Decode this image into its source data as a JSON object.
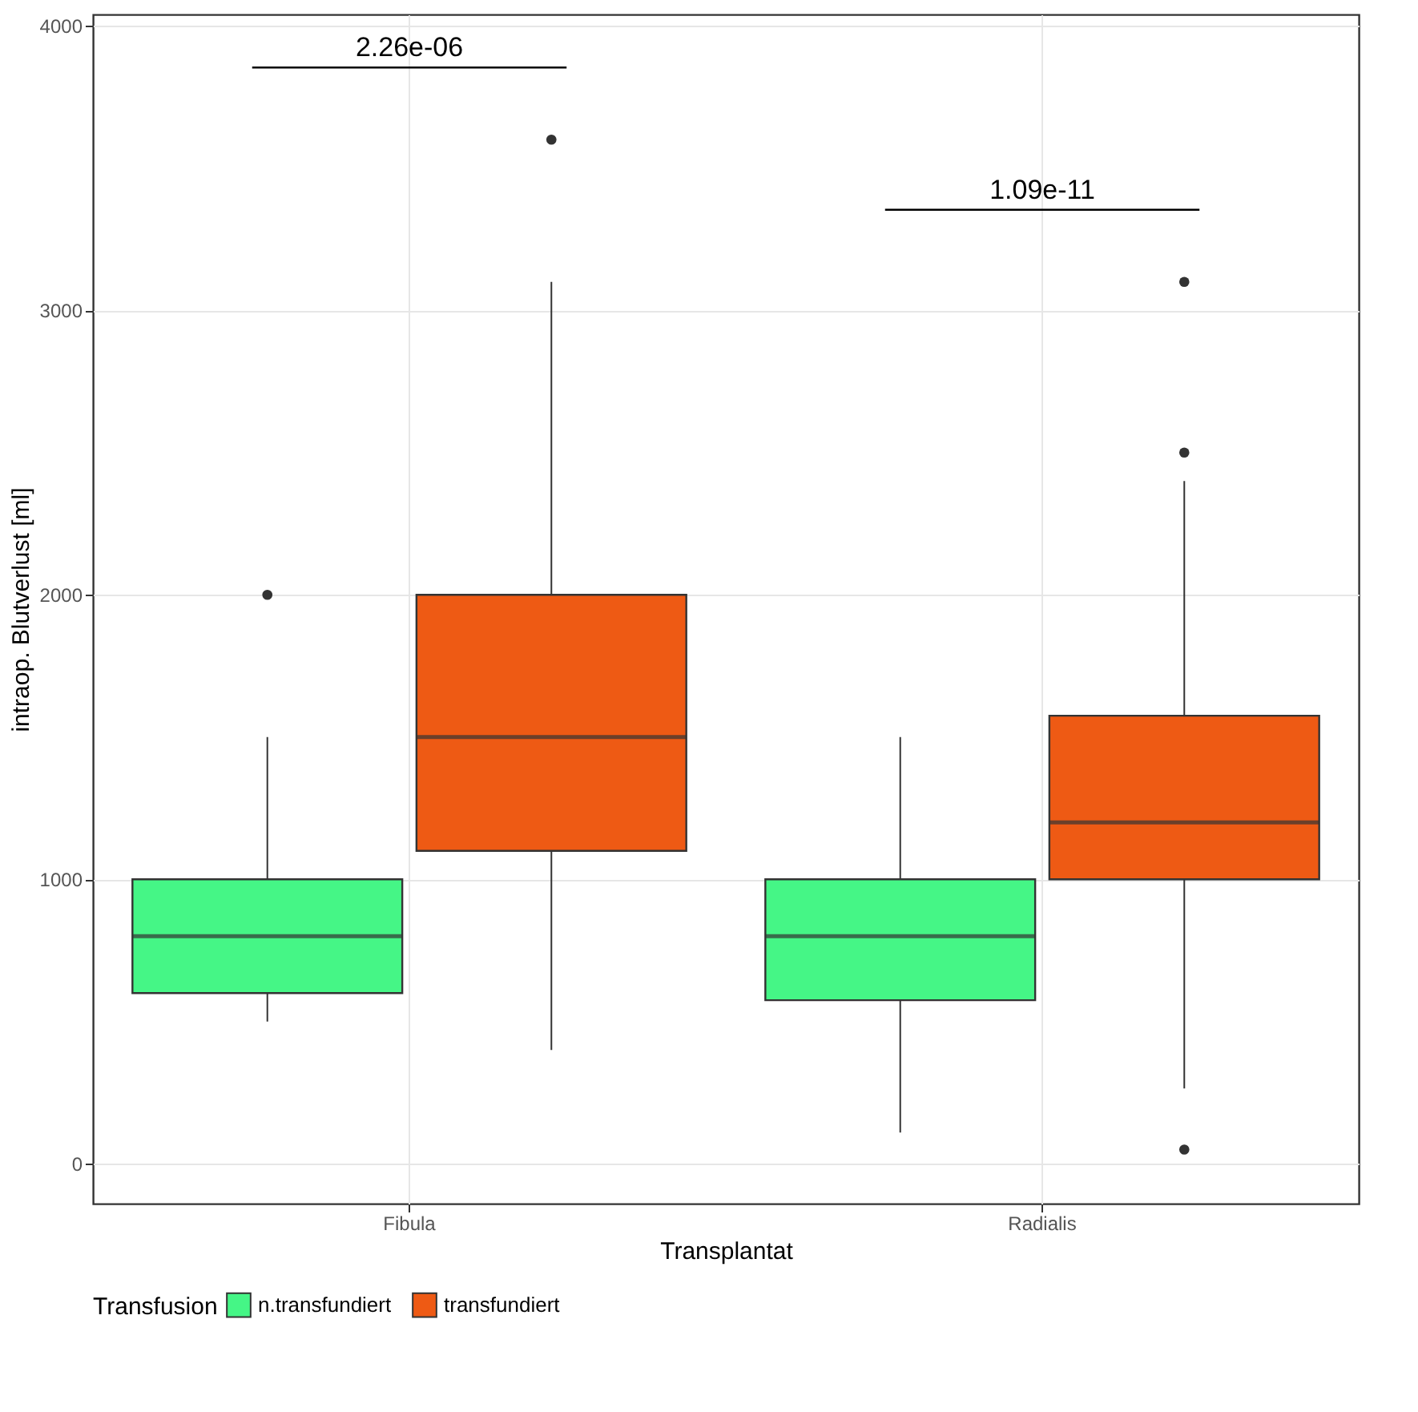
{
  "chart_data": {
    "type": "box",
    "xlabel": "Transplantat",
    "ylabel": "intraop. Blutverlust [ml]",
    "legend_title": "Transfusion",
    "categories": [
      "Fibula",
      "Radialis"
    ],
    "series": [
      {
        "name": "n.transfundiert",
        "color": "#45f686",
        "boxes": [
          {
            "low": 500,
            "q1": 600,
            "median": 800,
            "q3": 1000,
            "high": 1500,
            "outliers": [
              2000
            ]
          },
          {
            "low": 110,
            "q1": 575,
            "median": 800,
            "q3": 1000,
            "high": 1500
          }
        ]
      },
      {
        "name": "transfundiert",
        "color": "#ee5a14",
        "boxes": [
          {
            "low": 400,
            "q1": 1100,
            "median": 1500,
            "q3": 2000,
            "high": 3100,
            "outliers": [
              3600
            ]
          },
          {
            "low": 265,
            "q1": 1000,
            "median": 1200,
            "q3": 1575,
            "high": 2400,
            "outliers": [
              3100,
              2500,
              50
            ]
          }
        ]
      }
    ],
    "annotations": [
      "2.26e-06",
      "1.09e-11"
    ],
    "ylim": [
      -140,
      4040
    ],
    "yticks": [
      0,
      1000,
      2000,
      3000,
      4000
    ],
    "grid": true,
    "legend": "bottom"
  }
}
